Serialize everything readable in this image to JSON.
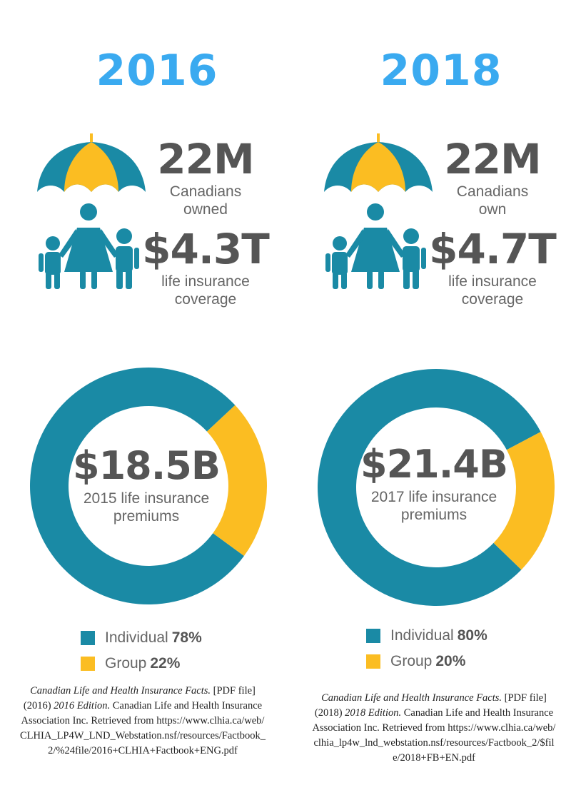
{
  "colors": {
    "year": "#3aaaf0",
    "teal": "#1a8aa5",
    "gold": "#fbbd22",
    "text": "#555555"
  },
  "panels": [
    {
      "year": "2016",
      "people_count": "22M",
      "people_text": [
        "Canadians",
        "owned"
      ],
      "coverage": "$4.3T",
      "coverage_text": [
        "life insurance",
        "coverage"
      ],
      "premiums": "$18.5B",
      "premiums_text": [
        "2015 life insurance",
        "premiums"
      ],
      "legend": [
        {
          "label": "Individual",
          "value": "78%"
        },
        {
          "label": "Group",
          "value": "22%"
        }
      ],
      "citation": {
        "title": "Canadian Life and Health Insurance Facts.",
        "pre": " [PDF file] (2016) ",
        "edition": "2016 Edition.",
        "post": " Canadian Life and Health Insurance Association Inc. Retrieved from",
        "url": "https://www.clhia.ca/web/CLHIA_LP4W_LND_Webstation.nsf/resources/Factbook_2/%24file/2016+CLHIA+Factbook+ENG.pdf"
      }
    },
    {
      "year": "2018",
      "people_count": "22M",
      "people_text": [
        "Canadians",
        "own"
      ],
      "coverage": "$4.7T",
      "coverage_text": [
        "life insurance",
        "coverage"
      ],
      "premiums": "$21.4B",
      "premiums_text": [
        "2017 life insurance",
        "premiums"
      ],
      "legend": [
        {
          "label": "Individual",
          "value": "80%"
        },
        {
          "label": "Group",
          "value": "20%"
        }
      ],
      "citation": {
        "title": "Canadian Life and Health Insurance Facts.",
        "pre": " [PDF file] (2018) ",
        "edition": "2018 Edition.",
        "post": " Canadian Life and Health Insurance Association Inc. Retrieved from",
        "url": "https://www.clhia.ca/web/clhia_lp4w_lnd_webstation.nsf/resources/Factbook_2/$file/2018+FB+EN.pdf"
      }
    }
  ],
  "chart_data": [
    {
      "type": "pie",
      "categories": [
        "Individual",
        "Group"
      ],
      "values": [
        78,
        22
      ]
    },
    {
      "type": "pie",
      "categories": [
        "Individual",
        "Group"
      ],
      "values": [
        80,
        20
      ]
    }
  ]
}
